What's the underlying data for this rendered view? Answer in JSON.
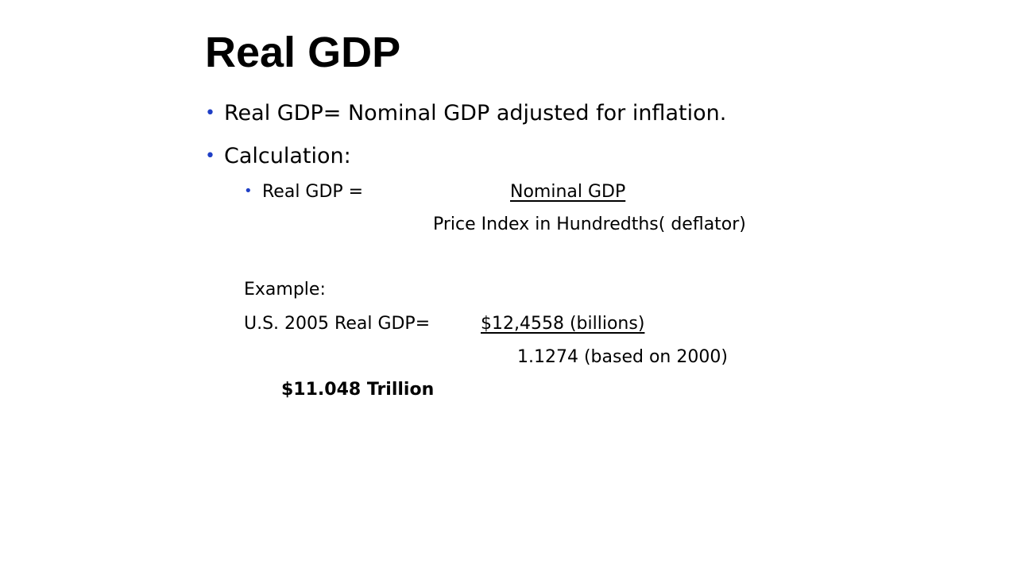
{
  "slide": {
    "title": "Real GDP",
    "bullets": [
      {
        "text": "Real GDP= Nominal GDP adjusted for inflation."
      },
      {
        "text": "Calculation:"
      }
    ],
    "formula": {
      "lhs": "Real GDP =",
      "numerator": "Nominal GDP",
      "denominator": "Price Index in Hundredths( deflator)"
    },
    "example": {
      "heading": "Example:",
      "lhs": "U.S. 2005 Real GDP=",
      "numerator": "$12,4558 (billions)",
      "denominator": "1.1274 (based on 2000)",
      "result": "$11.048 Trillion"
    },
    "colors": {
      "bullet": "#1f3fc6",
      "text": "#000000",
      "background": "#ffffff"
    }
  }
}
